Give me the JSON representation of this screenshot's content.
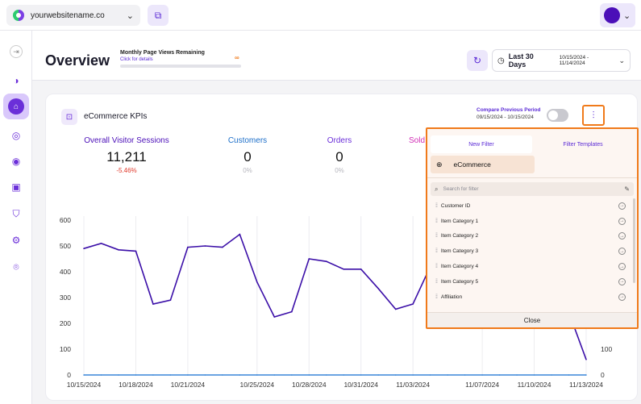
{
  "topbar": {
    "site_name": "yourwebsitename.co",
    "site_icon": "site-logo",
    "external_link_icon": "external-link-icon",
    "user_icon": "avatar"
  },
  "sidebar": {
    "items": [
      {
        "name": "collapse-icon",
        "glyph": "⇥"
      },
      {
        "name": "analytics-icon",
        "glyph": "◑"
      },
      {
        "name": "ecommerce-icon",
        "glyph": "🛍"
      },
      {
        "name": "engagement-icon",
        "glyph": "◎"
      },
      {
        "name": "behavior-icon",
        "glyph": "◉"
      },
      {
        "name": "chat-icon",
        "glyph": "▣"
      },
      {
        "name": "security-icon",
        "glyph": "⛉"
      },
      {
        "name": "settings-icon",
        "glyph": "⚙"
      },
      {
        "name": "location-icon",
        "glyph": "⌾"
      }
    ],
    "active_index": 2
  },
  "header": {
    "title": "Overview",
    "quota_title": "Monthly Page Views Remaining",
    "quota_link": "Click for details",
    "quota_value": "∞",
    "range_label": "Last 30 Days",
    "range_dates": "10/15/2024 - 11/14/2024"
  },
  "card": {
    "title": "eCommerce KPIs",
    "compare_label": "Compare Previous Period",
    "compare_dates": "09/15/2024 - 10/15/2024",
    "compare_enabled": false,
    "metrics": [
      {
        "label": "Overall Visitor Sessions",
        "value": "11,211",
        "delta": "-5.46%",
        "color": "#4b0fb8",
        "delta_color": "#e0392b"
      },
      {
        "label": "Customers",
        "value": "0",
        "delta": "0%",
        "color": "#1d6fc9",
        "delta_color": "#b5b5bd"
      },
      {
        "label": "Orders",
        "value": "0",
        "delta": "0%",
        "color": "#6b2fd9",
        "delta_color": "#b5b5bd"
      },
      {
        "label": "Sold",
        "value": "",
        "delta": "",
        "color": "#d12fb6",
        "delta_color": "#b5b5bd"
      }
    ]
  },
  "filter_panel": {
    "tabs": [
      "New Filter",
      "Filter Templates"
    ],
    "active_tab": 0,
    "category": "eCommerce",
    "search_placeholder": "Search for filter",
    "items": [
      "Customer ID",
      "Item Category 1",
      "Item Category 2",
      "Item Category 3",
      "Item Category 4",
      "Item Category 5",
      "Affiliation"
    ],
    "close_label": "Close"
  },
  "chart_data": {
    "type": "line",
    "x_tick_labels": [
      "10/15/2024",
      "10/18/2024",
      "10/21/2024",
      "10/25/2024",
      "10/28/2024",
      "10/31/2024",
      "11/03/2024",
      "11/07/2024",
      "11/10/2024",
      "11/13/2024"
    ],
    "yticks_left": [
      0,
      100,
      200,
      300,
      400,
      500,
      600
    ],
    "yticks_right": [
      0,
      100
    ],
    "ylim": [
      0,
      600
    ],
    "series": [
      {
        "color": "#3b0fa8",
        "values": [
          490,
          510,
          485,
          480,
          275,
          290,
          495,
          500,
          495,
          545,
          360,
          225,
          245,
          450,
          440,
          410,
          410,
          335,
          255,
          275,
          420,
          null,
          null,
          null,
          null,
          null,
          null,
          null,
          null,
          60
        ]
      },
      {
        "color": "#3a86d8",
        "values": [
          0,
          0,
          0,
          0,
          0,
          0,
          0,
          0,
          0,
          0,
          0,
          0,
          0,
          0,
          0,
          0,
          0,
          0,
          0,
          0,
          0,
          0,
          0,
          0,
          0,
          0,
          0,
          0,
          0,
          0
        ]
      }
    ]
  }
}
